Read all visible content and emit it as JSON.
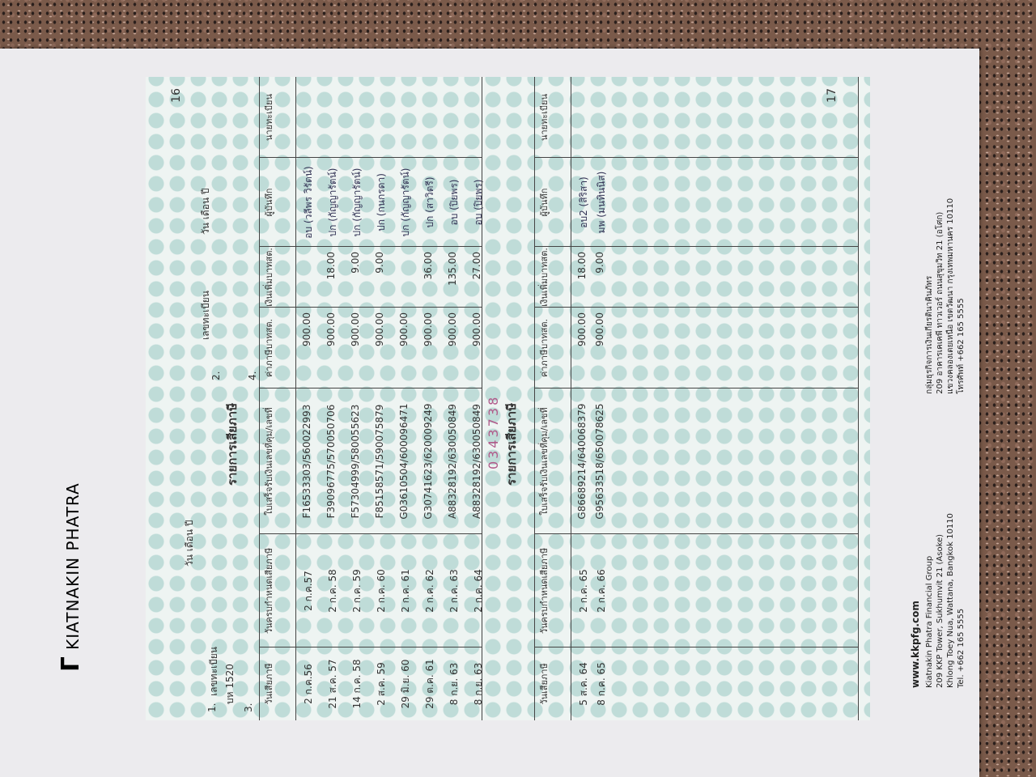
{
  "brand": {
    "name": "KIATNAKIN PHATRA",
    "website": "www.kkpfg.com",
    "english": [
      "Kiatnakin Phatra Financial Group",
      "209 KKP Tower, Sukhumvit 21 (Asoke)",
      "Khlong Toey Nua, Wattana, Bangkok 10110",
      "Tel. +662 165 5555"
    ],
    "thai": [
      "กลุ่มธุรกิจการเงินเกียรตินาคินภัทร",
      "209 อาคารเคเคพี ทาวเวอร์ ถนนสุขุมวิท 21 (อโศก)",
      "แขวงคลองเตยเหนือ เขตวัฒนา กรุงเทพมหานคร 10110",
      "โทรศัพท์ +662 165 5555"
    ]
  },
  "form": {
    "page_left": "16",
    "page_right": "17",
    "serial": "0343738",
    "header": {
      "item1": "1.",
      "plate_label": "เลขทะเบียน",
      "plate": "บห 1520",
      "date_label": "วัน เดือน ปี",
      "item2": "2.",
      "item3": "3.",
      "item4": "4.",
      "plate_label2": "เลขทะเบียน",
      "date_label2": "วัน เดือน ปี"
    },
    "title": "รายการเสียภาษี",
    "columns": [
      "วันเสียภาษี",
      "วันครบกำหนดเสียภาษี",
      "ใบเสร็จรับเงินเลขที่คุม/เลขที่",
      "ค่าภาษีบาทสต.",
      "เงินเพิ่มบาทสต.",
      "ผู้บันทึก",
      "นายทะเบียน"
    ],
    "rows": [
      {
        "paid": "2 ก.ค.56",
        "due": "2 ก.ค.57",
        "receipt": "F16533303/560022993",
        "tax": "900.00",
        "recorder": "อบ (วลีพร วิรัตน์)"
      },
      {
        "paid": "21 ส.ค. 57",
        "due": "2 ก.ค. 58",
        "receipt": "F39096775/570050706",
        "tax": "900.00",
        "surcharge": "18.00",
        "recorder": "ปก (กัญญารัตน์)"
      },
      {
        "paid": "14 ก.ค. 58",
        "due": "2 ก.ค. 59",
        "receipt": "F57304999/580055623",
        "tax": "900.00",
        "surcharge": "9.00",
        "recorder": "ปก (กัญญารัตน์)"
      },
      {
        "paid": "2 ส.ค. 59",
        "due": "2 ก.ค. 60",
        "receipt": "F85158571/590075879",
        "tax": "900.00",
        "surcharge": "9.00",
        "recorder": "ปก (กนกรดา)"
      },
      {
        "paid": "29 มิ.ย. 60",
        "due": "2 ก.ค. 61",
        "receipt": "G03610504/600096471",
        "tax": "900.00",
        "recorder": "ปก (กัญญารัตน์)"
      },
      {
        "paid": "29 ต.ค. 61",
        "due": "2 ก.ค. 62",
        "receipt": "G30741623/620009249",
        "tax": "900.00",
        "surcharge": "36.00",
        "recorder": "ปก (สาวิตรี)"
      },
      {
        "paid": "8 ก.ย. 63",
        "due": "2 ก.ค. 63",
        "receipt": "A88328192/630050849",
        "tax": "900.00",
        "surcharge": "135.00",
        "recorder": "อบ (ปิยพร)"
      },
      {
        "paid": "8 ก.ย. 63",
        "due": "2 ก.ค. 64",
        "receipt": "A88328192/630050849",
        "tax": "900.00",
        "surcharge": "27.00",
        "recorder": "อบ (ปิยพร)"
      }
    ],
    "rows2": [
      {
        "paid": "5 ส.ค. 64",
        "due": "2 ก.ค. 65",
        "receipt": "G86689214/640068379",
        "tax": "900.00",
        "surcharge": "18.00",
        "recorder": "อบ2 (สิริสา)"
      },
      {
        "paid": "8 ก.ค. 65",
        "due": "2 ก.ค. 66",
        "receipt": "G95633518/650078625",
        "tax": "900.00",
        "surcharge": "9.00",
        "recorder": "มพ (มนทินนิส)"
      }
    ]
  }
}
